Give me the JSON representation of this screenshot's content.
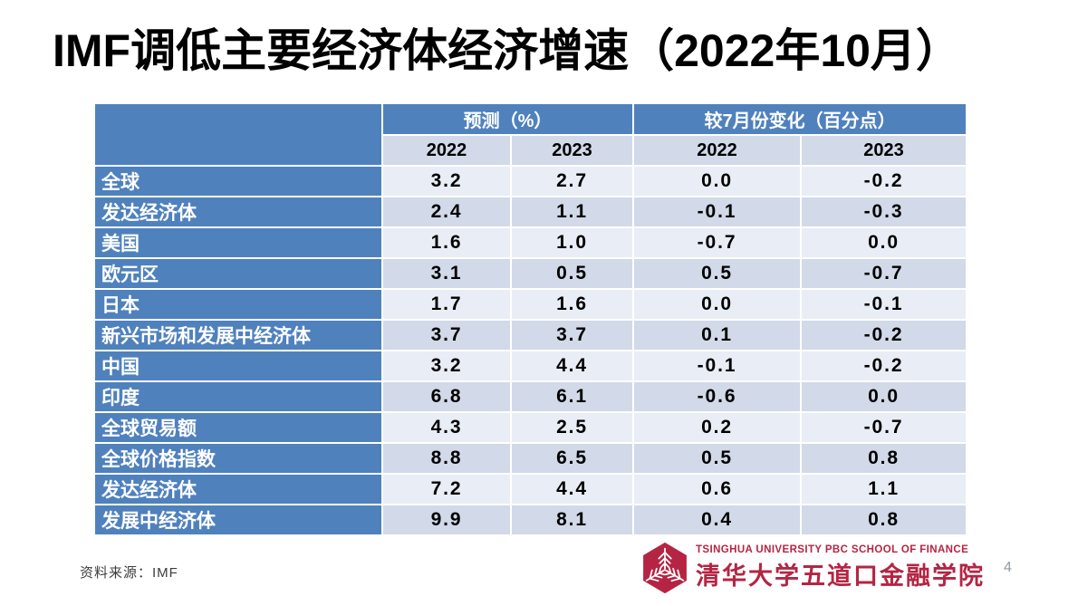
{
  "slide": {
    "title": "IMF调低主要经济体经济增速（2022年10月）",
    "page_number": "4"
  },
  "table": {
    "header": {
      "groups": [
        {
          "label": "预测（%）"
        },
        {
          "label": "较7月份变化（百分点）"
        }
      ],
      "years": [
        "2022",
        "2023",
        "2022",
        "2023"
      ]
    },
    "rows": [
      {
        "label": "全球",
        "values": [
          "3.2",
          "2.7",
          "0.0",
          "-0.2"
        ]
      },
      {
        "label": "发达经济体",
        "values": [
          "2.4",
          "1.1",
          "-0.1",
          "-0.3"
        ]
      },
      {
        "label": "美国",
        "values": [
          "1.6",
          "1.0",
          "-0.7",
          "0.0"
        ]
      },
      {
        "label": "欧元区",
        "values": [
          "3.1",
          "0.5",
          "0.5",
          "-0.7"
        ]
      },
      {
        "label": "日本",
        "values": [
          "1.7",
          "1.6",
          "0.0",
          "-0.1"
        ]
      },
      {
        "label": "新兴市场和发展中经济体",
        "values": [
          "3.7",
          "3.7",
          "0.1",
          "-0.2"
        ]
      },
      {
        "label": "中国",
        "values": [
          "3.2",
          "4.4",
          "-0.1",
          "-0.2"
        ]
      },
      {
        "label": "印度",
        "values": [
          "6.8",
          "6.1",
          "-0.6",
          "0.0"
        ]
      },
      {
        "label": "全球贸易额",
        "values": [
          "4.3",
          "2.5",
          "0.2",
          "-0.7"
        ]
      },
      {
        "label": "全球价格指数",
        "values": [
          "8.8",
          "6.5",
          "0.5",
          "0.8"
        ]
      },
      {
        "label": "发达经济体",
        "values": [
          "7.2",
          "4.4",
          "0.6",
          "1.1"
        ]
      },
      {
        "label": "发展中经济体",
        "values": [
          "9.9",
          "8.1",
          "0.4",
          "0.8"
        ]
      }
    ]
  },
  "footer": {
    "source": "资料来源：IMF",
    "logo": {
      "line1": "TSINGHUA UNIVERSITY PBC SCHOOL OF FINANCE",
      "line2": "清华大学五道口金融学院"
    }
  },
  "colors": {
    "header_blue": "#4F81BD",
    "band_dark": "#D2D9E8",
    "band_light": "#E9EDF5",
    "logo_crimson": "#B52543",
    "page_number_gray": "#9099A9"
  },
  "chart_data": {
    "type": "table",
    "title": "IMF调低主要经济体经济增速（2022年10月）",
    "column_groups": [
      "预测（%）",
      "较7月份变化（百分点）"
    ],
    "columns": [
      "预测 2022",
      "预测 2023",
      "较7月份变化 2022",
      "较7月份变化 2023"
    ],
    "categories": [
      "全球",
      "发达经济体",
      "美国",
      "欧元区",
      "日本",
      "新兴市场和发展中经济体",
      "中国",
      "印度",
      "全球贸易额",
      "全球价格指数",
      "发达经济体",
      "发展中经济体"
    ],
    "series": [
      {
        "name": "预测(%) 2022",
        "values": [
          3.2,
          2.4,
          1.6,
          3.1,
          1.7,
          3.7,
          3.2,
          6.8,
          4.3,
          8.8,
          7.2,
          9.9
        ]
      },
      {
        "name": "预测(%) 2023",
        "values": [
          2.7,
          1.1,
          1.0,
          0.5,
          1.6,
          3.7,
          4.4,
          6.1,
          2.5,
          6.5,
          4.4,
          8.1
        ]
      },
      {
        "name": "较7月份变化(百分点) 2022",
        "values": [
          0.0,
          -0.1,
          -0.7,
          0.5,
          0.0,
          0.1,
          -0.1,
          -0.6,
          0.2,
          0.5,
          0.6,
          0.4
        ]
      },
      {
        "name": "较7月份变化(百分点) 2023",
        "values": [
          -0.2,
          -0.3,
          0.0,
          -0.7,
          -0.1,
          -0.2,
          -0.2,
          0.0,
          -0.7,
          0.8,
          1.1,
          0.8
        ]
      }
    ],
    "source": "IMF"
  }
}
